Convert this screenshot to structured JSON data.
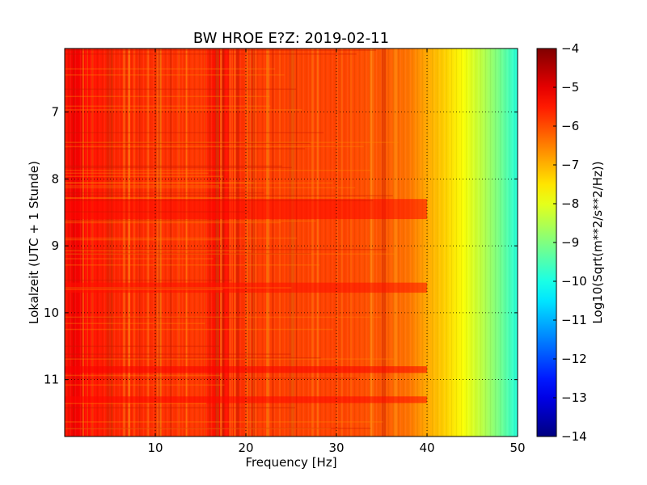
{
  "chart_data": {
    "type": "heatmap",
    "title": "BW HROE E?Z: 2019-02-11",
    "xlabel": "Frequency [Hz]",
    "ylabel": "Lokalzeit (UTC + 1 Stunde)",
    "colorbar_label": "Log10(Sqrt(m**2/s**2/Hz))",
    "xlim": [
      0,
      50
    ],
    "ylim": [
      11.85,
      6.05
    ],
    "y_inverted": true,
    "clim": [
      -14,
      -4
    ],
    "colormap": "jet",
    "grid": true,
    "x_ticks": [
      10,
      20,
      30,
      40,
      50
    ],
    "y_ticks": [
      7,
      8,
      9,
      10,
      11
    ],
    "colorbar_ticks": [
      -4,
      -5,
      -6,
      -7,
      -8,
      -9,
      -10,
      -11,
      -12,
      -13,
      -14
    ],
    "spectral_profile": {
      "frequency_hz": [
        0,
        1,
        2,
        5,
        10,
        15,
        17,
        20,
        25,
        30,
        35,
        38,
        40,
        42,
        44,
        46,
        48,
        49.5,
        50
      ],
      "level_log10": [
        -5.5,
        -5.1,
        -5.3,
        -5.6,
        -5.7,
        -5.8,
        -5.3,
        -5.8,
        -5.9,
        -5.9,
        -6.1,
        -6.4,
        -6.9,
        -7.3,
        -7.8,
        -8.4,
        -9.1,
        -9.7,
        -9.9
      ]
    },
    "high_energy_bands_local_hours": [
      {
        "start": 8.3,
        "end": 8.6,
        "level_log10": -5.3
      },
      {
        "start": 9.55,
        "end": 9.7,
        "level_log10": -5.4
      },
      {
        "start": 10.8,
        "end": 10.9,
        "level_log10": -5.2
      },
      {
        "start": 11.25,
        "end": 11.35,
        "level_log10": -5.3
      }
    ]
  }
}
